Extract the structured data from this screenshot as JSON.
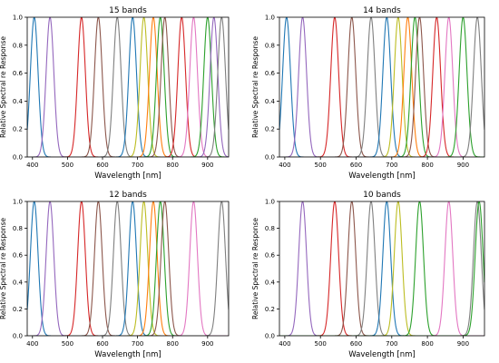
{
  "chart_data": [
    {
      "type": "line",
      "title": "15 bands",
      "xlabel": "Wavelength [nm]",
      "ylabel": "Relative Spectral re Response",
      "xlim": [
        385,
        960
      ],
      "ylim": [
        0,
        1.0
      ],
      "xticks": [
        400,
        500,
        600,
        700,
        800,
        900
      ],
      "yticks": [
        0.0,
        0.2,
        0.4,
        0.6,
        0.8,
        1.0
      ],
      "grid": false,
      "series": [
        {
          "center": 405,
          "color": "#1f77b4",
          "fwhm": 26
        },
        {
          "center": 450,
          "color": "#9467bd",
          "fwhm": 26
        },
        {
          "center": 540,
          "color": "#d62728",
          "fwhm": 26
        },
        {
          "center": 588,
          "color": "#8c564b",
          "fwhm": 26
        },
        {
          "center": 642,
          "color": "#7f7f7f",
          "fwhm": 26
        },
        {
          "center": 686,
          "color": "#1f77b4",
          "fwhm": 26
        },
        {
          "center": 718,
          "color": "#bcbd22",
          "fwhm": 26
        },
        {
          "center": 745,
          "color": "#ff7f0e",
          "fwhm": 26
        },
        {
          "center": 765,
          "color": "#2ca02c",
          "fwhm": 26
        },
        {
          "center": 778,
          "color": "#8c564b",
          "fwhm": 26
        },
        {
          "center": 826,
          "color": "#d62728",
          "fwhm": 26
        },
        {
          "center": 860,
          "color": "#e377c2",
          "fwhm": 26
        },
        {
          "center": 900,
          "color": "#2ca02c",
          "fwhm": 26
        },
        {
          "center": 918,
          "color": "#9467bd",
          "fwhm": 26
        },
        {
          "center": 940,
          "color": "#7f7f7f",
          "fwhm": 26
        }
      ]
    },
    {
      "type": "line",
      "title": "14 bands",
      "xlabel": "Wavelength [nm]",
      "ylabel": "Relative Spectral re Response",
      "xlim": [
        385,
        960
      ],
      "ylim": [
        0,
        1.0
      ],
      "xticks": [
        400,
        500,
        600,
        700,
        800,
        900
      ],
      "yticks": [
        0.0,
        0.2,
        0.4,
        0.6,
        0.8,
        1.0
      ],
      "grid": false,
      "series": [
        {
          "center": 405,
          "color": "#1f77b4",
          "fwhm": 26
        },
        {
          "center": 450,
          "color": "#9467bd",
          "fwhm": 26
        },
        {
          "center": 540,
          "color": "#d62728",
          "fwhm": 26
        },
        {
          "center": 588,
          "color": "#8c564b",
          "fwhm": 26
        },
        {
          "center": 642,
          "color": "#7f7f7f",
          "fwhm": 26
        },
        {
          "center": 686,
          "color": "#1f77b4",
          "fwhm": 26
        },
        {
          "center": 718,
          "color": "#bcbd22",
          "fwhm": 26
        },
        {
          "center": 745,
          "color": "#ff7f0e",
          "fwhm": 26
        },
        {
          "center": 765,
          "color": "#2ca02c",
          "fwhm": 26
        },
        {
          "center": 778,
          "color": "#8c564b",
          "fwhm": 26
        },
        {
          "center": 826,
          "color": "#d62728",
          "fwhm": 26
        },
        {
          "center": 860,
          "color": "#e377c2",
          "fwhm": 26
        },
        {
          "center": 900,
          "color": "#2ca02c",
          "fwhm": 26
        },
        {
          "center": 940,
          "color": "#7f7f7f",
          "fwhm": 26
        }
      ]
    },
    {
      "type": "line",
      "title": "12 bands",
      "xlabel": "Wavelength [nm]",
      "ylabel": "Relative Spectral re Response",
      "xlim": [
        385,
        960
      ],
      "ylim": [
        0,
        1.0
      ],
      "xticks": [
        400,
        500,
        600,
        700,
        800,
        900
      ],
      "yticks": [
        0.0,
        0.2,
        0.4,
        0.6,
        0.8,
        1.0
      ],
      "grid": false,
      "series": [
        {
          "center": 405,
          "color": "#1f77b4",
          "fwhm": 26
        },
        {
          "center": 450,
          "color": "#9467bd",
          "fwhm": 26
        },
        {
          "center": 540,
          "color": "#d62728",
          "fwhm": 26
        },
        {
          "center": 588,
          "color": "#8c564b",
          "fwhm": 26
        },
        {
          "center": 642,
          "color": "#7f7f7f",
          "fwhm": 26
        },
        {
          "center": 686,
          "color": "#1f77b4",
          "fwhm": 26
        },
        {
          "center": 718,
          "color": "#bcbd22",
          "fwhm": 26
        },
        {
          "center": 745,
          "color": "#ff7f0e",
          "fwhm": 26
        },
        {
          "center": 765,
          "color": "#2ca02c",
          "fwhm": 26
        },
        {
          "center": 778,
          "color": "#8c564b",
          "fwhm": 26
        },
        {
          "center": 860,
          "color": "#e377c2",
          "fwhm": 26
        },
        {
          "center": 940,
          "color": "#7f7f7f",
          "fwhm": 26
        }
      ]
    },
    {
      "type": "line",
      "title": "10 bands",
      "xlabel": "Wavelength [nm]",
      "ylabel": "Relative Spectral re Response",
      "xlim": [
        385,
        960
      ],
      "ylim": [
        0,
        1.0
      ],
      "xticks": [
        400,
        500,
        600,
        700,
        800,
        900
      ],
      "yticks": [
        0.0,
        0.2,
        0.4,
        0.6,
        0.8,
        1.0
      ],
      "grid": false,
      "series": [
        {
          "center": 450,
          "color": "#9467bd",
          "fwhm": 26
        },
        {
          "center": 540,
          "color": "#d62728",
          "fwhm": 26
        },
        {
          "center": 588,
          "color": "#8c564b",
          "fwhm": 26
        },
        {
          "center": 642,
          "color": "#7f7f7f",
          "fwhm": 26
        },
        {
          "center": 686,
          "color": "#1f77b4",
          "fwhm": 26
        },
        {
          "center": 718,
          "color": "#bcbd22",
          "fwhm": 26
        },
        {
          "center": 778,
          "color": "#2ca02c",
          "fwhm": 26
        },
        {
          "center": 860,
          "color": "#e377c2",
          "fwhm": 26
        },
        {
          "center": 940,
          "color": "#7f7f7f",
          "fwhm": 26
        },
        {
          "center": 945,
          "color": "#2ca02c",
          "fwhm": 26
        }
      ]
    }
  ]
}
